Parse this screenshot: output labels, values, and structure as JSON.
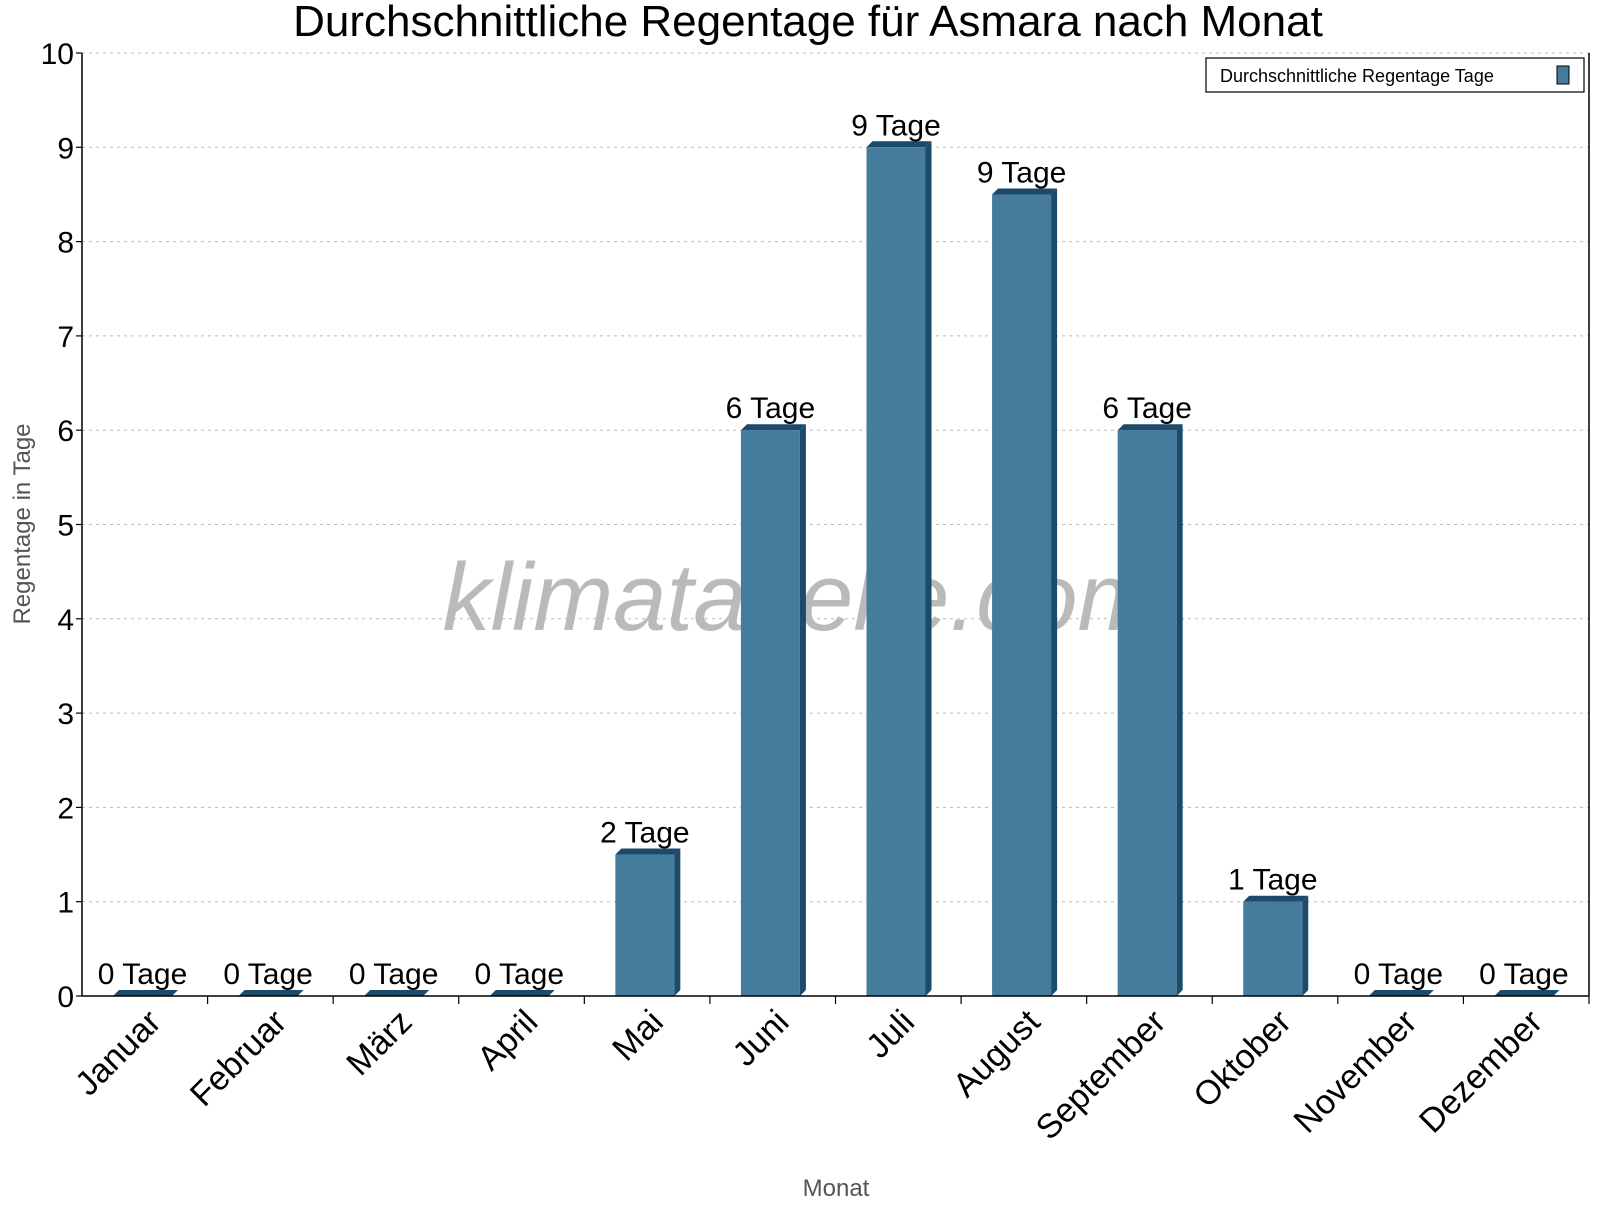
{
  "chart_data": {
    "type": "bar",
    "title": "Durchschnittliche Regentage für Asmara nach Monat",
    "xlabel": "Monat",
    "ylabel": "Regentage in Tage",
    "categories": [
      "Januar",
      "Februar",
      "März",
      "April",
      "Mai",
      "Juni",
      "Juli",
      "August",
      "September",
      "Oktober",
      "November",
      "Dezember"
    ],
    "series": [
      {
        "name": "Durchschnittliche Regentage Tage",
        "values": [
          0,
          0,
          0,
          0,
          1.5,
          6,
          9,
          8.5,
          6,
          1,
          0,
          0
        ],
        "labels": [
          "0 Tage",
          "0 Tage",
          "0 Tage",
          "0 Tage",
          "2 Tage",
          "6 Tage",
          "9 Tage",
          "9 Tage",
          "6 Tage",
          "1 Tage",
          "0 Tage",
          "0 Tage"
        ]
      }
    ],
    "ylim": [
      0,
      10
    ],
    "yticks": [
      "0",
      "1",
      "2",
      "3",
      "4",
      "5",
      "6",
      "7",
      "8",
      "9",
      "10"
    ],
    "grid": true,
    "legend_position": "top-right",
    "colors": {
      "bar_face": "#457b9d",
      "bar_side": "#1b4a6b"
    },
    "watermark": "klimatabelle.com"
  }
}
